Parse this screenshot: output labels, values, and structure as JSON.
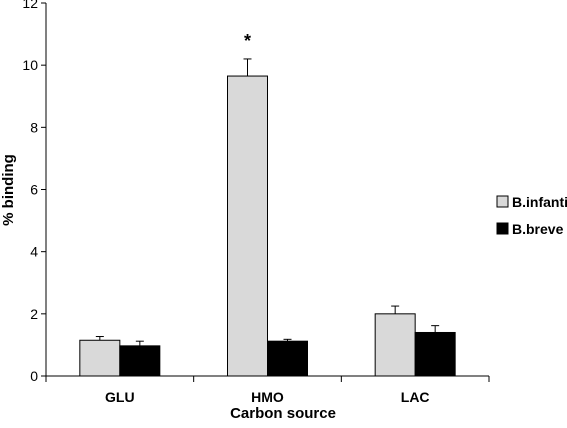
{
  "chart_data": {
    "type": "bar",
    "xlabel": "Carbon source",
    "ylabel": "% binding",
    "ylim": [
      0,
      12
    ],
    "yticks": [
      0,
      2,
      4,
      6,
      8,
      10,
      12
    ],
    "categories": [
      "GLU",
      "HMO",
      "LAC"
    ],
    "series": [
      {
        "name": "B.infantis",
        "color": "#d9d9d9",
        "values": [
          1.15,
          9.65,
          2.0
        ],
        "errors": [
          0.12,
          0.55,
          0.25
        ]
      },
      {
        "name": "B.breve",
        "color": "#000000",
        "values": [
          0.97,
          1.12,
          1.4
        ],
        "errors": [
          0.15,
          0.06,
          0.22
        ]
      }
    ],
    "annotations": [
      {
        "category": "HMO",
        "series": "B.infantis",
        "text": "*"
      }
    ],
    "grid": false,
    "legend_position": "right"
  }
}
